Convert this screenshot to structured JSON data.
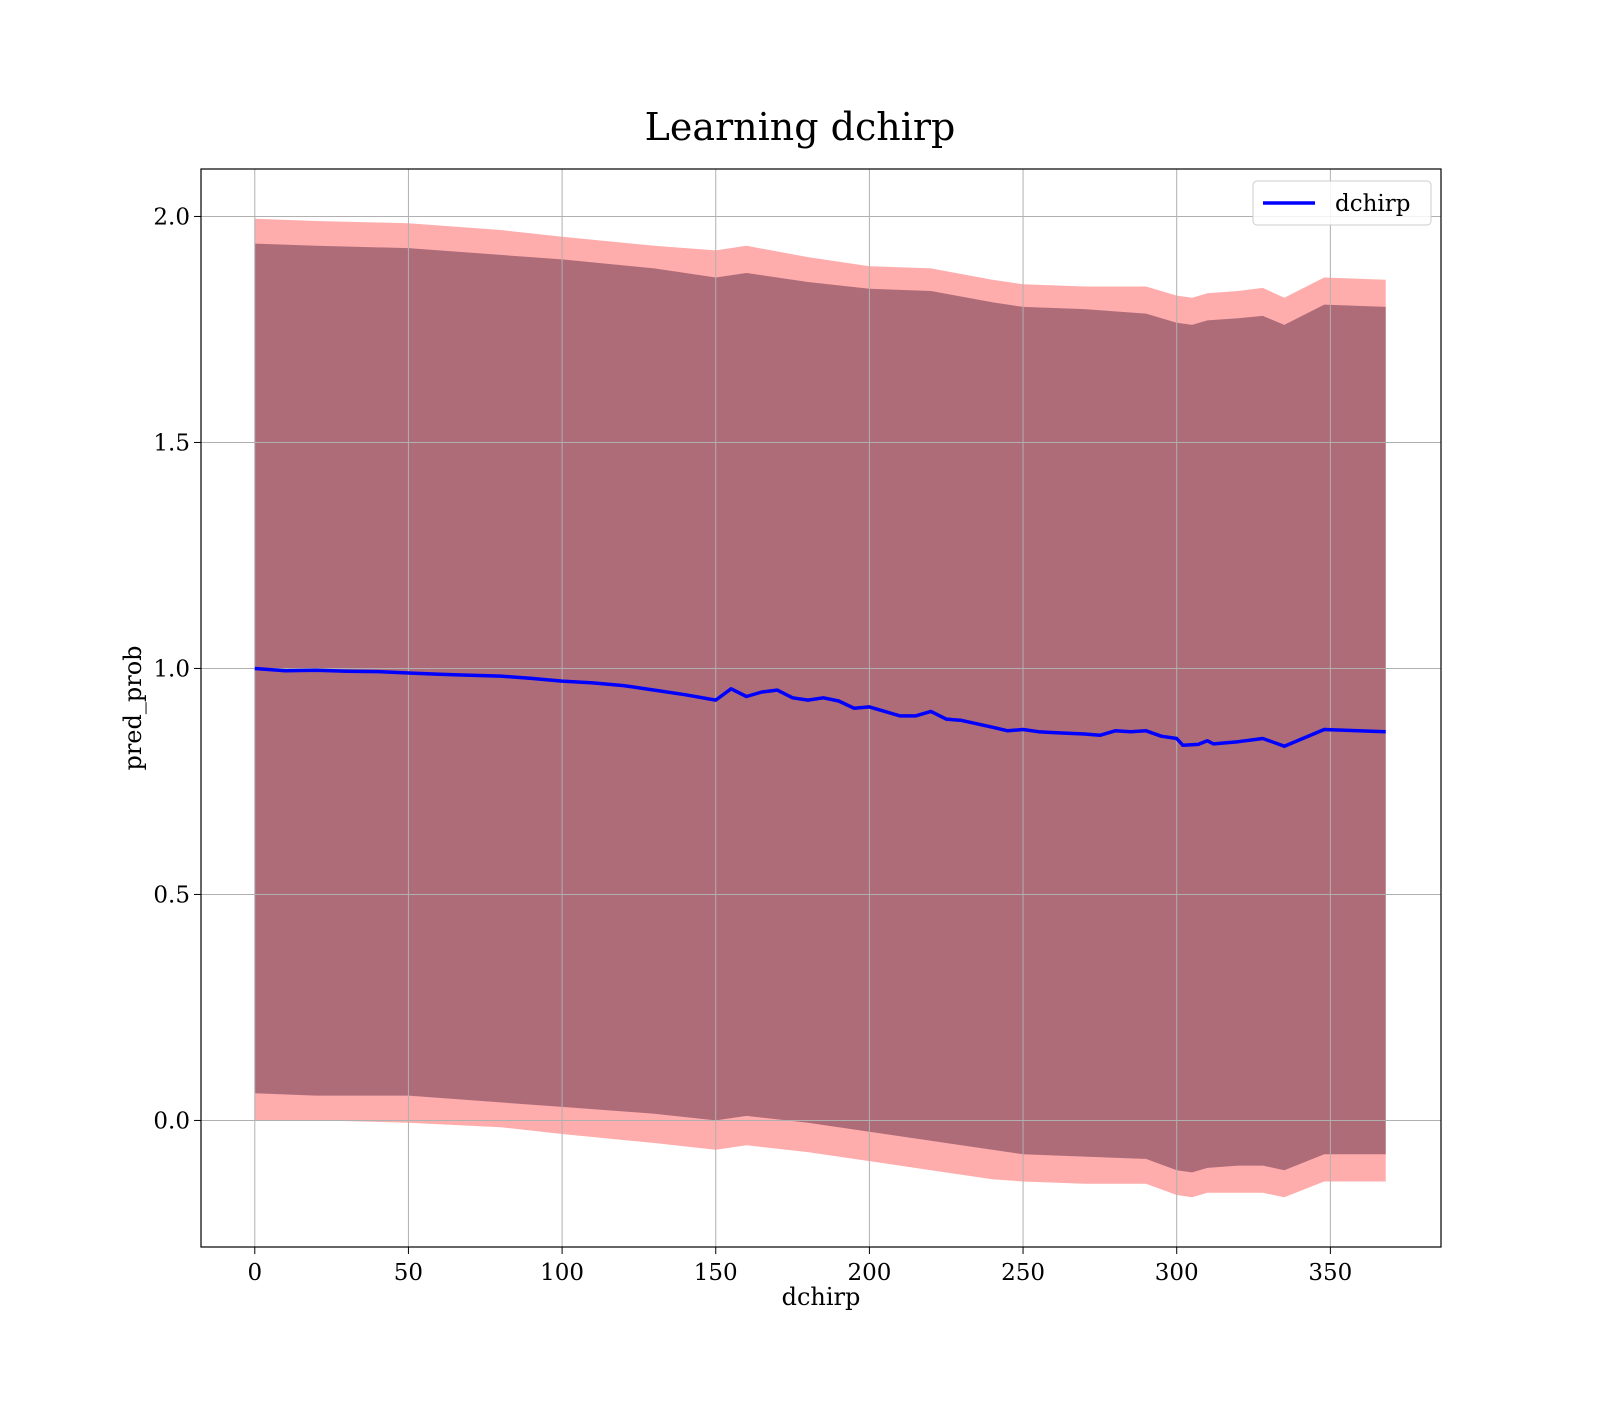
{
  "chart_data": {
    "type": "line",
    "title": "Learning dchirp",
    "xlabel": "dchirp",
    "ylabel": "pred_prob",
    "xlim": [
      -17.5,
      386
    ],
    "ylim": [
      -0.28,
      2.105
    ],
    "xticks": [
      0,
      50,
      100,
      150,
      200,
      250,
      300,
      350
    ],
    "xtick_labels": [
      "0",
      "50",
      "100",
      "150",
      "200",
      "250",
      "300",
      "350"
    ],
    "yticks": [
      0.0,
      0.5,
      1.0,
      1.5,
      2.0
    ],
    "ytick_labels": [
      "0.0",
      "0.5",
      "1.0",
      "1.5",
      "2.0"
    ],
    "grid": true,
    "legend": {
      "position": "top-right",
      "entries": [
        "dchirp"
      ]
    },
    "series": [
      {
        "name": "dchirp",
        "color": "#0000ff",
        "x": [
          0,
          10,
          20,
          30,
          40,
          50,
          60,
          70,
          80,
          90,
          100,
          110,
          120,
          130,
          140,
          150,
          155,
          160,
          165,
          170,
          175,
          180,
          185,
          190,
          195,
          200,
          210,
          215,
          220,
          225,
          230,
          240,
          245,
          250,
          255,
          260,
          270,
          275,
          280,
          285,
          290,
          295,
          300,
          302,
          307,
          310,
          312,
          320,
          328,
          335,
          348,
          368
        ],
        "values": [
          1.0,
          0.995,
          0.996,
          0.994,
          0.993,
          0.99,
          0.987,
          0.985,
          0.983,
          0.978,
          0.972,
          0.968,
          0.962,
          0.952,
          0.942,
          0.93,
          0.955,
          0.938,
          0.948,
          0.952,
          0.935,
          0.93,
          0.935,
          0.928,
          0.912,
          0.915,
          0.895,
          0.895,
          0.905,
          0.888,
          0.885,
          0.87,
          0.862,
          0.865,
          0.86,
          0.858,
          0.855,
          0.852,
          0.862,
          0.86,
          0.862,
          0.85,
          0.845,
          0.83,
          0.832,
          0.84,
          0.833,
          0.838,
          0.845,
          0.828,
          0.865,
          0.86
        ]
      }
    ],
    "bands": [
      {
        "color": "#ff8080",
        "x": [
          0,
          20,
          50,
          80,
          100,
          130,
          150,
          160,
          180,
          200,
          220,
          240,
          250,
          270,
          290,
          300,
          305,
          310,
          320,
          328,
          335,
          348,
          368
        ],
        "upper": [
          1.995,
          1.99,
          1.985,
          1.97,
          1.955,
          1.935,
          1.925,
          1.935,
          1.91,
          1.89,
          1.885,
          1.86,
          1.85,
          1.845,
          1.845,
          1.825,
          1.82,
          1.83,
          1.835,
          1.842,
          1.82,
          1.865,
          1.86
        ],
        "lower": [
          0.0,
          0.0,
          -0.005,
          -0.015,
          -0.03,
          -0.05,
          -0.065,
          -0.055,
          -0.07,
          -0.09,
          -0.11,
          -0.13,
          -0.135,
          -0.14,
          -0.14,
          -0.165,
          -0.17,
          -0.16,
          -0.16,
          -0.16,
          -0.17,
          -0.135,
          -0.135
        ]
      },
      {
        "color": "#a06070",
        "x": [
          0,
          20,
          50,
          80,
          100,
          130,
          150,
          160,
          180,
          200,
          220,
          240,
          250,
          270,
          290,
          300,
          305,
          310,
          320,
          328,
          335,
          348,
          368
        ],
        "upper": [
          1.94,
          1.935,
          1.93,
          1.915,
          1.905,
          1.885,
          1.865,
          1.875,
          1.855,
          1.84,
          1.835,
          1.81,
          1.8,
          1.795,
          1.785,
          1.765,
          1.76,
          1.77,
          1.775,
          1.78,
          1.76,
          1.805,
          1.8
        ],
        "lower": [
          0.06,
          0.055,
          0.055,
          0.04,
          0.03,
          0.015,
          0.0,
          0.01,
          -0.005,
          -0.025,
          -0.045,
          -0.065,
          -0.075,
          -0.08,
          -0.085,
          -0.11,
          -0.115,
          -0.105,
          -0.1,
          -0.1,
          -0.11,
          -0.075,
          -0.075
        ]
      }
    ]
  }
}
